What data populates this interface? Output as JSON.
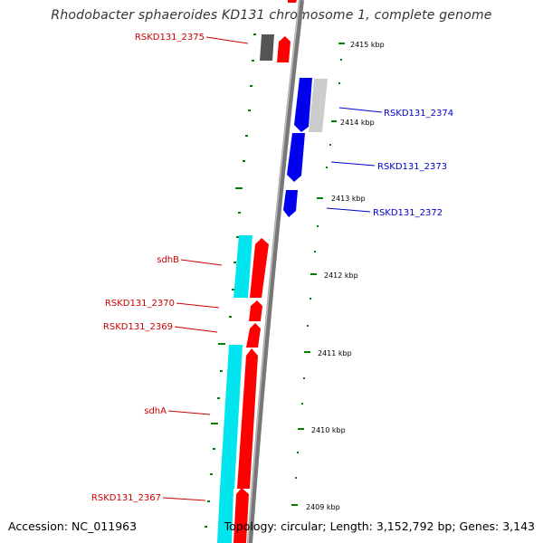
{
  "title": "Rhodobacter sphaeroides KD131 chromosome 1, complete genome",
  "footer": {
    "accession": "Accession: NC_011963",
    "topology": "Topology: circular; Length: 3,152,792 bp; Genes: 3,143"
  },
  "colors": {
    "forward_gene": "#ff0000",
    "reverse_gene": "#0000ee",
    "cds_cyan": "#00e5ee",
    "cds_gray": "#cccccc",
    "pseudo_dark": "#555555",
    "tick_green": "#008000",
    "label_red": "#cc0000",
    "label_blue": "#0000cc"
  },
  "scale": {
    "ticks": [
      "2415 kbp",
      "2414 kbp",
      "2413 kbp",
      "2412 kbp",
      "2411 kbp",
      "2410 kbp",
      "2409 kbp"
    ]
  },
  "gene_labels": [
    {
      "text": "RSKD131_2375",
      "color": "#cc0000"
    },
    {
      "text": "RSKD131_2374",
      "color": "#0000cc"
    },
    {
      "text": "RSKD131_2373",
      "color": "#0000cc"
    },
    {
      "text": "RSKD131_2372",
      "color": "#0000cc"
    },
    {
      "text": "sdhB",
      "color": "#cc0000"
    },
    {
      "text": "RSKD131_2370",
      "color": "#cc0000"
    },
    {
      "text": "RSKD131_2369",
      "color": "#cc0000"
    },
    {
      "text": "sdhA",
      "color": "#cc0000"
    },
    {
      "text": "RSKD131_2367",
      "color": "#cc0000"
    }
  ]
}
